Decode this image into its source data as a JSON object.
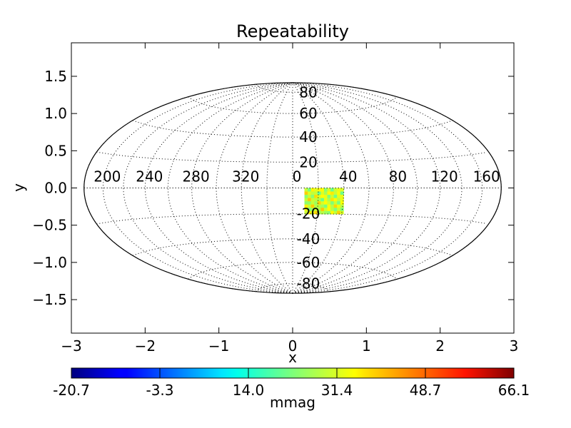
{
  "chart_data": {
    "type": "heatmap",
    "projection": "hammer-aitoff (dotted graticule)",
    "title": "Repeatability",
    "xlabel": "x",
    "ylabel": "y",
    "xlim": [
      -3,
      3
    ],
    "ylim": [
      -1.95,
      1.95
    ],
    "xticks": [
      "−3",
      "−2",
      "−1",
      "0",
      "1",
      "2",
      "3"
    ],
    "yticks": [
      "1.5",
      "1.0",
      "0.5",
      "0.0",
      "−0.5",
      "−1.0",
      "−1.5"
    ],
    "xtick_values": [
      -3,
      -2,
      -1,
      0,
      1,
      2,
      3
    ],
    "ytick_values": [
      1.5,
      1.0,
      0.5,
      0.0,
      -0.5,
      -1.0,
      -1.5
    ],
    "meridian_labels": [
      "200",
      "240",
      "280",
      "320",
      "0",
      "40",
      "80",
      "120",
      "160"
    ],
    "meridian_label_lon": [
      200,
      240,
      280,
      320,
      0,
      40,
      80,
      120,
      160
    ],
    "parallel_labels": [
      "80",
      "60",
      "40",
      "20",
      "-20",
      "-40",
      "-60",
      "-80"
    ],
    "parallel_label_lat": [
      80,
      60,
      40,
      20,
      -20,
      -40,
      -60,
      -80
    ],
    "data_region": {
      "x_range": [
        0.16,
        0.69
      ],
      "y_range": [
        -0.35,
        0.0
      ],
      "value_range": [
        20,
        40
      ],
      "nx": 12,
      "ny": 8
    },
    "colorbar": {
      "label": "mmag",
      "tick_labels": [
        "-20.7",
        "-3.3",
        "14.0",
        "31.4",
        "48.7",
        "66.1"
      ],
      "min": -20.7,
      "max": 66.1,
      "colormap": "jet"
    },
    "grid": true
  }
}
